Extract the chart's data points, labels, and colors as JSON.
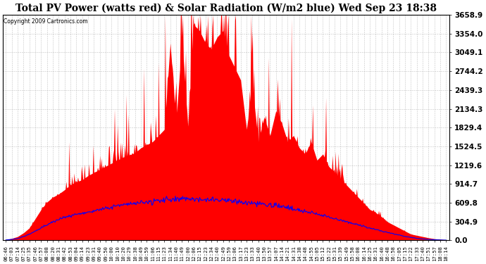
{
  "title": "Total PV Power (watts red) & Solar Radiation (W/m2 blue) Wed Sep 23 18:38",
  "copyright": "Copyright 2009 Cartronics.com",
  "yticks": [
    0.0,
    304.9,
    609.8,
    914.7,
    1219.6,
    1524.5,
    1829.4,
    2134.3,
    2439.3,
    2744.2,
    3049.1,
    3354.0,
    3658.9
  ],
  "ylim": [
    0,
    3658.9
  ],
  "title_fontsize": 10,
  "bg_color": "#ffffff",
  "plot_bg_color": "#ffffff",
  "grid_color": "#aaaaaa",
  "red_color": "#ff0000",
  "blue_color": "#0000ff",
  "x_labels": [
    "06:46",
    "07:03",
    "07:14",
    "07:25",
    "07:35",
    "07:46",
    "07:57",
    "08:08",
    "08:20",
    "08:31",
    "08:42",
    "08:53",
    "09:04",
    "09:14",
    "09:23",
    "09:31",
    "09:40",
    "09:50",
    "10:00",
    "10:10",
    "10:20",
    "10:29",
    "10:38",
    "10:49",
    "10:59",
    "11:06",
    "11:15",
    "11:23",
    "11:34",
    "11:40",
    "11:49",
    "12:00",
    "12:06",
    "12:15",
    "12:23",
    "12:34",
    "12:40",
    "12:49",
    "12:59",
    "13:06",
    "13:17",
    "13:23",
    "13:33",
    "13:40",
    "13:50",
    "13:57",
    "14:07",
    "14:14",
    "14:21",
    "14:31",
    "14:38",
    "14:48",
    "14:55",
    "15:05",
    "15:12",
    "15:22",
    "15:31",
    "15:39",
    "15:49",
    "15:58",
    "16:08",
    "16:14",
    "16:25",
    "16:31",
    "16:40",
    "16:48",
    "16:58",
    "17:05",
    "17:15",
    "17:22",
    "17:33",
    "17:40",
    "17:51",
    "17:57",
    "18:08",
    "18:14"
  ],
  "pv_power": [
    10,
    30,
    60,
    120,
    200,
    350,
    500,
    620,
    700,
    750,
    820,
    900,
    950,
    980,
    1050,
    1100,
    1150,
    1200,
    1250,
    1300,
    1350,
    1380,
    1420,
    1500,
    1550,
    1600,
    1700,
    1800,
    3200,
    1900,
    3300,
    1850,
    3500,
    3400,
    3200,
    3100,
    3300,
    3400,
    3000,
    2800,
    2600,
    1800,
    2500,
    1600,
    2000,
    1700,
    2100,
    1900,
    1600,
    1700,
    1500,
    1400,
    1600,
    1300,
    1400,
    1200,
    1100,
    1000,
    900,
    800,
    700,
    600,
    500,
    450,
    380,
    300,
    250,
    200,
    150,
    100,
    80,
    60,
    40,
    25,
    15,
    8
  ],
  "solar_rad": [
    5,
    15,
    30,
    60,
    100,
    150,
    200,
    250,
    300,
    340,
    370,
    400,
    420,
    440,
    460,
    480,
    500,
    520,
    540,
    560,
    575,
    585,
    595,
    610,
    620,
    635,
    645,
    655,
    660,
    665,
    670,
    670,
    668,
    665,
    660,
    655,
    650,
    645,
    638,
    630,
    622,
    615,
    605,
    595,
    582,
    570,
    555,
    540,
    525,
    505,
    488,
    468,
    448,
    425,
    403,
    378,
    352,
    328,
    302,
    276,
    248,
    225,
    198,
    175,
    150,
    128,
    105,
    84,
    64,
    47,
    32,
    22,
    14,
    9,
    5,
    3
  ]
}
